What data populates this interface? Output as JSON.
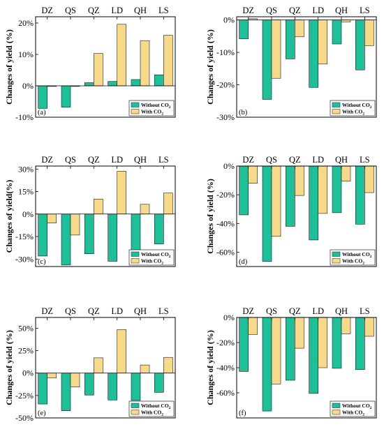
{
  "colors": {
    "without_co2": "#1fbf9a",
    "with_co2": "#f7d98c",
    "edge": "#1a1a1a"
  },
  "chart_data": [
    {
      "panel_label": "(a)",
      "type": "bar",
      "categories": [
        "DZ",
        "QS",
        "QZ",
        "LD",
        "QH",
        "LS"
      ],
      "ylabel": "Changes of yield (%)",
      "ylim": [
        -10,
        22
      ],
      "yticks": [
        -10,
        0,
        10,
        20
      ],
      "ytick_labels": [
        "-10%",
        "0%",
        "10%",
        "20%"
      ],
      "legend": {
        "position": "bottom-right",
        "entries": [
          "Without CO2",
          "With CO2"
        ]
      },
      "series": [
        {
          "name": "Without CO2",
          "values": [
            -7.2,
            -6.8,
            1.0,
            1.4,
            2.0,
            3.5
          ]
        },
        {
          "name": "With CO2",
          "values": [
            -0.2,
            -0.2,
            10.3,
            19.6,
            14.4,
            16.1
          ]
        }
      ]
    },
    {
      "panel_label": "(b)",
      "type": "bar",
      "categories": [
        "DZ",
        "QS",
        "QZ",
        "LD",
        "QH",
        "LS"
      ],
      "ylabel": "Changes of yield (%)",
      "ylim": [
        -30,
        1
      ],
      "yticks": [
        -30,
        -20,
        -10,
        0
      ],
      "ytick_labels": [
        "-30%",
        "-20%",
        "-10%",
        "0%"
      ],
      "legend": {
        "position": "bottom-right",
        "entries": [
          "Without CO2",
          "With CO2"
        ]
      },
      "series": [
        {
          "name": "Without CO2",
          "values": [
            -5.8,
            -24.5,
            -12.0,
            -20.8,
            -7.4,
            -15.4
          ]
        },
        {
          "name": "With CO2",
          "values": [
            0.4,
            -18.0,
            -5.2,
            -13.6,
            -0.6,
            -7.9
          ]
        }
      ]
    },
    {
      "panel_label": "(c)",
      "type": "bar",
      "categories": [
        "DZ",
        "QS",
        "QZ",
        "LD",
        "QH",
        "LS"
      ],
      "ylabel": "Changes of yield(%)",
      "ylim": [
        -35,
        32
      ],
      "yticks": [
        -30,
        -15,
        0,
        15,
        30
      ],
      "ytick_labels": [
        "-30%",
        "-15%",
        "0%",
        "15%",
        "30%"
      ],
      "legend": {
        "position": "bottom-right",
        "entries": [
          "Without CO2",
          "With CO2"
        ]
      },
      "series": [
        {
          "name": "Without CO2",
          "values": [
            -28.0,
            -34.0,
            -26.5,
            -31.5,
            -29.0,
            -20.0
          ]
        },
        {
          "name": "With CO2",
          "values": [
            -6.0,
            -14.0,
            10.0,
            28.5,
            6.5,
            14.0
          ]
        }
      ]
    },
    {
      "panel_label": "(d)",
      "type": "bar",
      "categories": [
        "DZ",
        "QS",
        "QZ",
        "LD",
        "QH",
        "LS"
      ],
      "ylabel": "Changes of yield (%)",
      "ylim": [
        -70,
        0
      ],
      "yticks": [
        -60,
        -40,
        -20,
        0
      ],
      "ytick_labels": [
        "-60%",
        "-40%",
        "-20%",
        "0%"
      ],
      "legend": {
        "position": "bottom-right",
        "entries": [
          "Without CO2",
          "With CO2"
        ]
      },
      "series": [
        {
          "name": "Without CO2",
          "values": [
            -34.0,
            -66.5,
            -42.0,
            -51.5,
            -32.5,
            -40.5
          ]
        },
        {
          "name": "With CO2",
          "values": [
            -12.0,
            -49.0,
            -20.5,
            -33.0,
            -10.5,
            -18.5
          ]
        }
      ]
    },
    {
      "panel_label": "(e)",
      "type": "bar",
      "categories": [
        "DZ",
        "QS",
        "QZ",
        "LD",
        "QH",
        "LS"
      ],
      "ylabel": "Changes of yield (%)",
      "ylim": [
        -50,
        62
      ],
      "yticks": [
        -50,
        -25,
        0,
        25,
        50
      ],
      "ytick_labels": [
        "-50%",
        "-25%",
        "0%",
        "25%",
        "50%"
      ],
      "legend": {
        "position": "bottom-right",
        "entries": [
          "Without CO2",
          "With CO2"
        ]
      },
      "series": [
        {
          "name": "Without CO2",
          "values": [
            -34.5,
            -42.0,
            -24.5,
            -30.0,
            -30.5,
            -21.5
          ]
        },
        {
          "name": "With CO2",
          "values": [
            -5.5,
            -15.5,
            17.0,
            48.5,
            9.0,
            17.5
          ]
        }
      ]
    },
    {
      "panel_label": "(f)",
      "type": "bar",
      "categories": [
        "DZ",
        "QS",
        "QZ",
        "LD",
        "QH",
        "LS"
      ],
      "ylabel": "Changes of yield (%)",
      "ylim": [
        -80,
        0
      ],
      "yticks": [
        -60,
        -40,
        -20,
        0
      ],
      "ytick_labels": [
        "-60%",
        "-40%",
        "-20%",
        "0%"
      ],
      "legend": {
        "position": "bottom-right",
        "entries": [
          "Without CO2",
          "With CO2"
        ]
      },
      "series": [
        {
          "name": "Without CO2",
          "values": [
            -43.0,
            -74.5,
            -50.0,
            -60.5,
            -40.5,
            -41.5
          ]
        },
        {
          "name": "With CO2",
          "values": [
            -13.5,
            -53.0,
            -24.5,
            -40.0,
            -13.0,
            -15.0
          ]
        }
      ]
    }
  ]
}
